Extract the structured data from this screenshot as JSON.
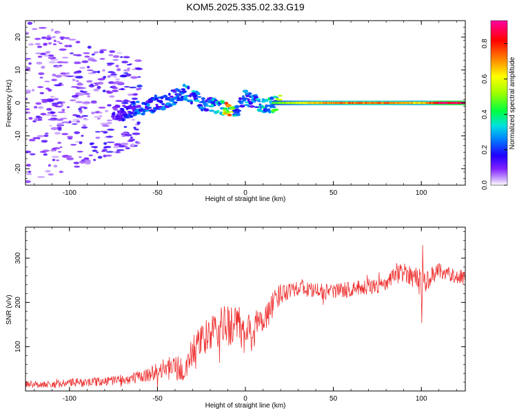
{
  "figure_title": "KOM5.2025.335.02.33.G19",
  "chart_data": [
    {
      "type": "heatmap",
      "title": "KOM5.2025.335.02.33.G19",
      "xlabel": "Height of straight line (km)",
      "ylabel": "Frequency (Hz)",
      "xlim": [
        -125,
        125
      ],
      "ylim": [
        -25,
        25
      ],
      "xticks": [
        -100,
        -50,
        0,
        50,
        100
      ],
      "yticks": [
        -20,
        -10,
        0,
        10,
        20
      ],
      "xtick_labels": [
        "-100",
        "-50",
        "0",
        "50",
        "100"
      ],
      "ytick_labels": [
        "-20",
        "-10",
        "0",
        "10",
        "20"
      ],
      "colorbar": {
        "label": "Normalized spectral amplitude",
        "range": [
          0,
          0.93
        ],
        "ticks": [
          0.0,
          0.2,
          0.4,
          0.6,
          0.8
        ],
        "tick_labels": [
          "0.0",
          "0.2",
          "0.4",
          "0.6",
          "0.8"
        ],
        "colormap": [
          "#ffffff",
          "#b080ff",
          "#7000ff",
          "#0000ff",
          "#00c8ff",
          "#00ff60",
          "#b0ff00",
          "#ffff00",
          "#ff8000",
          "#ff0000",
          "#ff00a0"
        ]
      },
      "ridge": {
        "x": [
          -70,
          -65,
          -60,
          -55,
          -50,
          -45,
          -40,
          -35,
          -30,
          -25,
          -20,
          -15,
          -10,
          -5,
          0,
          5,
          10,
          15,
          20,
          25,
          30,
          40,
          60,
          80,
          100,
          110,
          125
        ],
        "frequency": [
          -3,
          -2,
          -1.5,
          -1,
          0,
          0.5,
          2,
          3.5,
          2,
          0,
          -0.5,
          -1,
          -2,
          -2,
          1.5,
          0.5,
          -1,
          -0.5,
          0,
          0,
          0,
          0,
          0,
          0,
          0,
          0,
          0
        ],
        "amplitude": [
          0.15,
          0.2,
          0.25,
          0.25,
          0.2,
          0.3,
          0.25,
          0.3,
          0.3,
          0.25,
          0.3,
          0.35,
          0.75,
          0.3,
          0.3,
          0.25,
          0.35,
          0.45,
          0.5,
          0.55,
          0.6,
          0.7,
          0.75,
          0.75,
          0.65,
          0.9,
          0.93
        ]
      }
    },
    {
      "type": "line",
      "title": "",
      "xlabel": "Height of straight line (km)",
      "ylabel": "SNR (v/v)",
      "xlim": [
        -125,
        125
      ],
      "ylim": [
        0,
        370
      ],
      "xticks": [
        -100,
        -50,
        0,
        50,
        100
      ],
      "yticks": [
        100,
        200,
        300
      ],
      "xtick_labels": [
        "-100",
        "-50",
        "0",
        "50",
        "100"
      ],
      "ytick_labels": [
        "100",
        "200",
        "300"
      ],
      "color": "#ee3030",
      "series": [
        {
          "name": "SNR",
          "x": [
            -125,
            -110,
            -100,
            -90,
            -80,
            -70,
            -60,
            -50,
            -45,
            -40,
            -35,
            -30,
            -25,
            -20,
            -15,
            -10,
            -5,
            0,
            5,
            10,
            15,
            20,
            25,
            30,
            40,
            50,
            60,
            70,
            80,
            85,
            90,
            95,
            100,
            105,
            110,
            115,
            120,
            125
          ],
          "y": [
            15,
            15,
            18,
            20,
            22,
            25,
            30,
            45,
            50,
            55,
            40,
            90,
            110,
            130,
            140,
            150,
            150,
            120,
            140,
            160,
            190,
            220,
            230,
            235,
            225,
            225,
            230,
            235,
            240,
            260,
            270,
            260,
            245,
            255,
            275,
            265,
            260,
            255
          ],
          "noise_amplitude": [
            8,
            8,
            10,
            10,
            10,
            12,
            15,
            20,
            25,
            30,
            30,
            35,
            40,
            40,
            45,
            50,
            50,
            55,
            45,
            35,
            30,
            25,
            20,
            20,
            18,
            18,
            18,
            18,
            18,
            20,
            22,
            25,
            35,
            20,
            18,
            18,
            18,
            18
          ]
        }
      ]
    }
  ]
}
